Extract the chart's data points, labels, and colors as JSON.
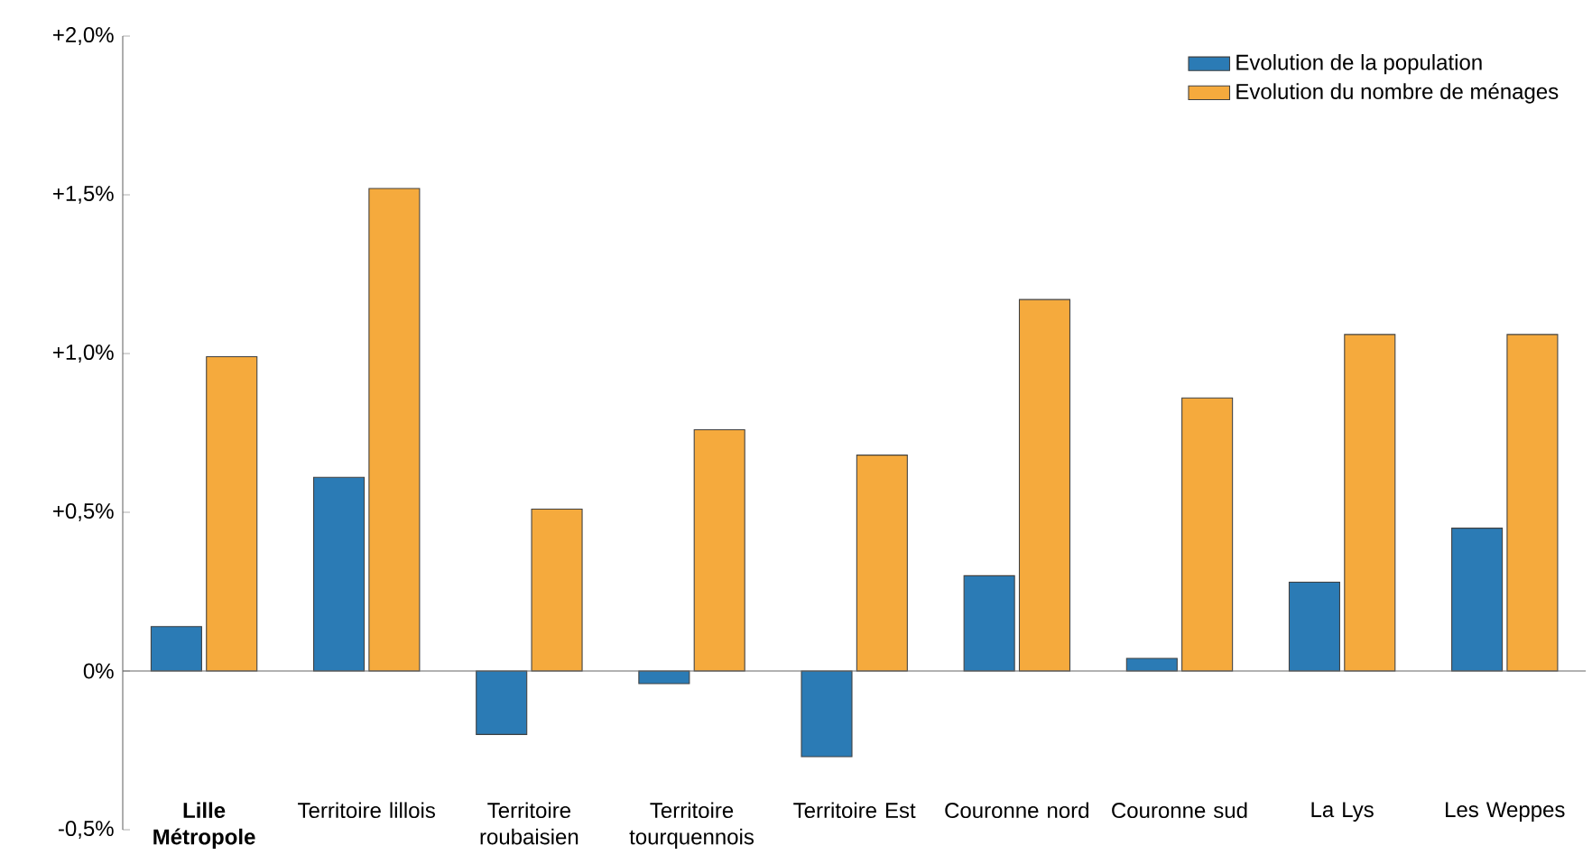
{
  "chart_data": {
    "type": "bar",
    "categories": [
      "**Lille Métropole**",
      "Territoire lillois",
      "Territoire roubaisien",
      "Territoire tourquennois",
      "Territoire Est",
      "Couronne nord",
      "Couronne sud",
      "La Lys",
      "Les Weppes"
    ],
    "series": [
      {
        "name": "Evolution de la population",
        "color": "#2b7bb5",
        "values": [
          0.14,
          0.61,
          -0.2,
          -0.04,
          -0.27,
          0.3,
          0.04,
          0.28,
          0.45
        ]
      },
      {
        "name": "Evolution du nombre de ménages",
        "color": "#f5aa3d",
        "values": [
          0.99,
          1.52,
          0.51,
          0.76,
          0.68,
          1.17,
          0.86,
          1.06,
          1.06
        ]
      }
    ],
    "ylim": [
      -0.5,
      2.0
    ],
    "yticks": [
      {
        "value": -0.5,
        "label": "-0,5%"
      },
      {
        "value": 0,
        "label": "0%"
      },
      {
        "value": 0.5,
        "label": "+0,5%"
      },
      {
        "value": 1.0,
        "label": "+1,0%"
      },
      {
        "value": 1.5,
        "label": "+1,5%"
      },
      {
        "value": 2.0,
        "label": "+2,0%"
      }
    ],
    "legend": "top right"
  }
}
